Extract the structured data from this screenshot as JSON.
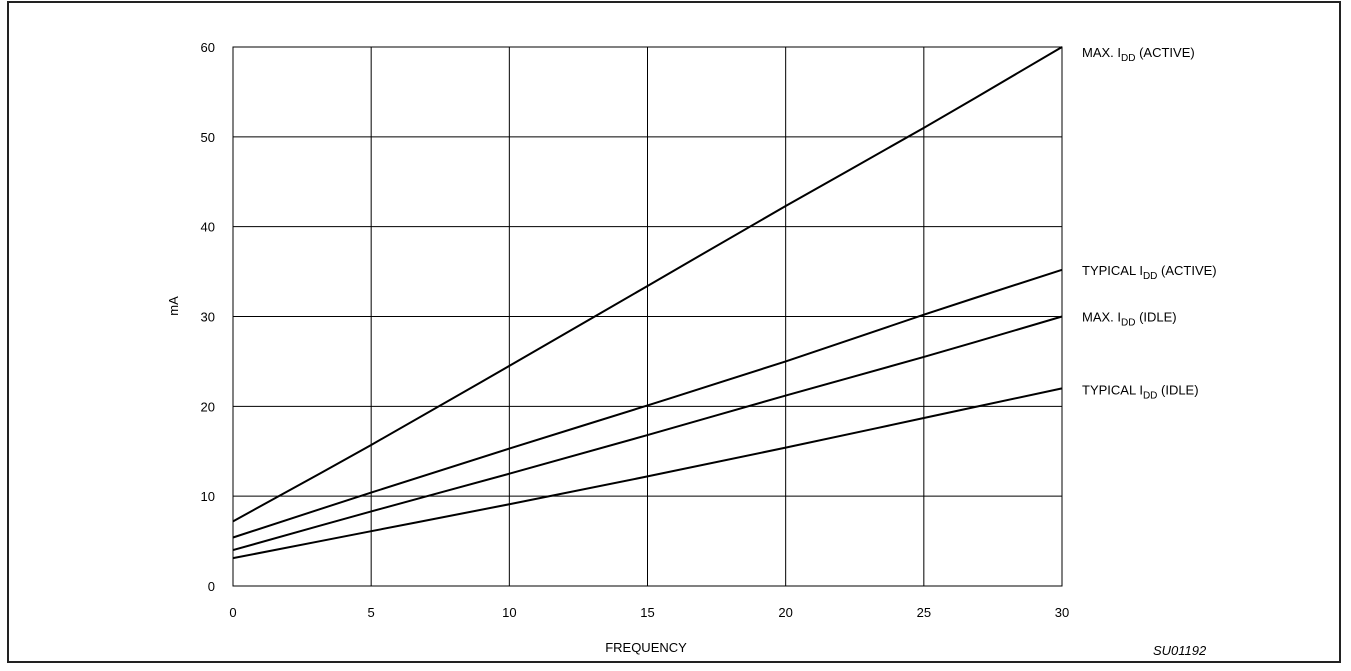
{
  "chart_data": {
    "type": "line",
    "xlabel": "FREQUENCY",
    "ylabel": "mA",
    "xlim": [
      0,
      30
    ],
    "ylim": [
      0,
      60
    ],
    "xticks": [
      "0",
      "5",
      "10",
      "15",
      "20",
      "25",
      "30"
    ],
    "yticks": [
      "0",
      "10",
      "20",
      "30",
      "40",
      "50",
      "60"
    ],
    "grid": true,
    "figure_id": "SU01192",
    "series": [
      {
        "name": "MAX. IDD (ACTIVE)",
        "label_main": "MAX. I",
        "label_sub": "DD",
        "label_tail": " (ACTIVE)",
        "x": [
          0,
          5,
          10,
          15,
          20,
          25,
          30
        ],
        "y": [
          7.2,
          15.7,
          24.5,
          33.4,
          42.3,
          51.0,
          60.0
        ]
      },
      {
        "name": "TYPICAL IDD (ACTIVE)",
        "label_main": "TYPICAL I",
        "label_sub": "DD",
        "label_tail": " (ACTIVE)",
        "x": [
          0,
          5,
          10,
          15,
          20,
          25,
          30
        ],
        "y": [
          5.4,
          10.4,
          15.3,
          20.1,
          25.0,
          30.2,
          35.2
        ]
      },
      {
        "name": "MAX. IDD (IDLE)",
        "label_main": "MAX. I",
        "label_sub": "DD",
        "label_tail": " (IDLE)",
        "x": [
          0,
          5,
          10,
          15,
          20,
          25,
          30
        ],
        "y": [
          4.0,
          8.3,
          12.5,
          16.8,
          21.2,
          25.5,
          30.0
        ]
      },
      {
        "name": "TYPICAL IDD (IDLE)",
        "label_main": "TYPICAL I",
        "label_sub": "DD",
        "label_tail": " (IDLE)",
        "x": [
          0,
          5,
          10,
          15,
          20,
          25,
          30
        ],
        "y": [
          3.1,
          6.1,
          9.1,
          12.2,
          15.4,
          18.7,
          22.0
        ]
      }
    ]
  }
}
